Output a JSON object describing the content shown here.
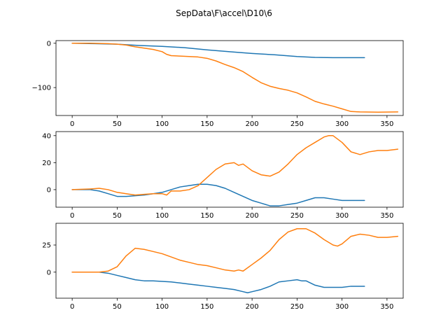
{
  "figure": {
    "title": "SepData\\F\\accel\\D10\\6"
  },
  "chart_data": [
    {
      "type": "line",
      "xlim": [
        -18,
        368
      ],
      "ylim": [
        -163,
        6
      ],
      "xticks": [
        0,
        50,
        100,
        150,
        200,
        250,
        300,
        350
      ],
      "yticks": [
        0,
        -100
      ],
      "ytick_labels": [
        "0",
        "−100"
      ],
      "grid": false,
      "series": [
        {
          "color": "#1f77b4",
          "x": [
            0,
            25,
            50,
            75,
            100,
            125,
            150,
            175,
            200,
            225,
            250,
            270,
            290,
            310,
            325
          ],
          "y": [
            0,
            -1,
            -2,
            -5,
            -7,
            -10,
            -15,
            -19,
            -23,
            -26,
            -30,
            -32,
            -32.5,
            -32.5,
            -32.5
          ]
        },
        {
          "color": "#ff7f0e",
          "x": [
            0,
            20,
            40,
            50,
            60,
            70,
            80,
            90,
            100,
            105,
            110,
            120,
            140,
            150,
            160,
            170,
            180,
            190,
            200,
            210,
            220,
            230,
            240,
            250,
            260,
            270,
            280,
            290,
            300,
            310,
            320,
            340,
            362
          ],
          "y": [
            0,
            0,
            -1,
            -2,
            -4,
            -8,
            -11,
            -14,
            -19,
            -25,
            -28,
            -29,
            -31,
            -34,
            -40,
            -48,
            -55,
            -64,
            -77,
            -89,
            -97,
            -102,
            -106,
            -112,
            -121,
            -131,
            -137,
            -142,
            -148,
            -154,
            -155,
            -155.5,
            -155
          ]
        }
      ]
    },
    {
      "type": "line",
      "xlim": [
        -18,
        368
      ],
      "ylim": [
        -13,
        43
      ],
      "xticks": [
        0,
        50,
        100,
        150,
        200,
        250,
        300,
        350
      ],
      "yticks": [
        0,
        20,
        40
      ],
      "ytick_labels": [
        "0",
        "20",
        "40"
      ],
      "grid": false,
      "series": [
        {
          "color": "#1f77b4",
          "x": [
            0,
            20,
            30,
            40,
            50,
            60,
            70,
            80,
            90,
            100,
            110,
            120,
            130,
            140,
            150,
            160,
            170,
            180,
            190,
            200,
            210,
            220,
            230,
            240,
            250,
            260,
            270,
            280,
            290,
            300,
            310,
            325
          ],
          "y": [
            0,
            0,
            -1,
            -3,
            -5,
            -5,
            -4.5,
            -4,
            -3,
            -2,
            0,
            2,
            3,
            4,
            4,
            3,
            1,
            -2,
            -5,
            -8,
            -10,
            -12,
            -12,
            -11,
            -10,
            -8,
            -6,
            -6,
            -7,
            -8,
            -8,
            -8
          ]
        },
        {
          "color": "#ff7f0e",
          "x": [
            0,
            20,
            30,
            40,
            50,
            60,
            70,
            80,
            90,
            100,
            105,
            110,
            120,
            130,
            140,
            150,
            160,
            170,
            180,
            185,
            190,
            200,
            210,
            220,
            230,
            240,
            250,
            260,
            270,
            280,
            285,
            290,
            300,
            310,
            320,
            330,
            340,
            350,
            362
          ],
          "y": [
            0,
            0.5,
            1,
            0,
            -2,
            -3,
            -4,
            -3.5,
            -3,
            -3,
            -4,
            -1,
            -1,
            0,
            3,
            9,
            15,
            19,
            20,
            18,
            19,
            14,
            11,
            10,
            13,
            19,
            26,
            31,
            35,
            39,
            40,
            40,
            35,
            28,
            26,
            28,
            29,
            29,
            30
          ]
        }
      ]
    },
    {
      "type": "line",
      "xlim": [
        -18,
        368
      ],
      "ylim": [
        -24,
        45
      ],
      "xticks": [
        0,
        50,
        100,
        150,
        200,
        250,
        300,
        350
      ],
      "yticks": [
        0,
        25
      ],
      "ytick_labels": [
        "0",
        "25"
      ],
      "grid": false,
      "series": [
        {
          "color": "#1f77b4",
          "x": [
            0,
            20,
            30,
            40,
            50,
            60,
            70,
            80,
            90,
            100,
            110,
            120,
            130,
            140,
            150,
            160,
            170,
            180,
            190,
            195,
            200,
            210,
            220,
            230,
            240,
            250,
            255,
            260,
            270,
            280,
            290,
            300,
            310,
            325
          ],
          "y": [
            0,
            0,
            0,
            -1,
            -3,
            -5,
            -7,
            -8,
            -8,
            -8.5,
            -9,
            -10,
            -11,
            -12,
            -13,
            -14,
            -15,
            -16,
            -18,
            -19,
            -18,
            -16,
            -13,
            -9,
            -8,
            -7,
            -8,
            -8,
            -12,
            -14,
            -14,
            -14,
            -13,
            -13
          ]
        },
        {
          "color": "#ff7f0e",
          "x": [
            0,
            20,
            30,
            40,
            50,
            60,
            70,
            80,
            90,
            100,
            110,
            120,
            130,
            140,
            150,
            160,
            170,
            180,
            185,
            190,
            200,
            210,
            220,
            230,
            240,
            250,
            260,
            270,
            280,
            290,
            295,
            300,
            310,
            320,
            330,
            340,
            350,
            362
          ],
          "y": [
            0,
            0,
            0,
            1,
            5,
            15,
            22,
            21,
            19,
            17,
            14,
            11,
            9,
            7,
            6,
            4,
            2,
            1,
            2,
            1,
            7,
            13,
            20,
            30,
            37,
            40,
            40,
            36,
            30,
            25,
            24,
            26,
            33,
            35,
            34,
            32,
            32,
            33
          ]
        }
      ]
    }
  ]
}
